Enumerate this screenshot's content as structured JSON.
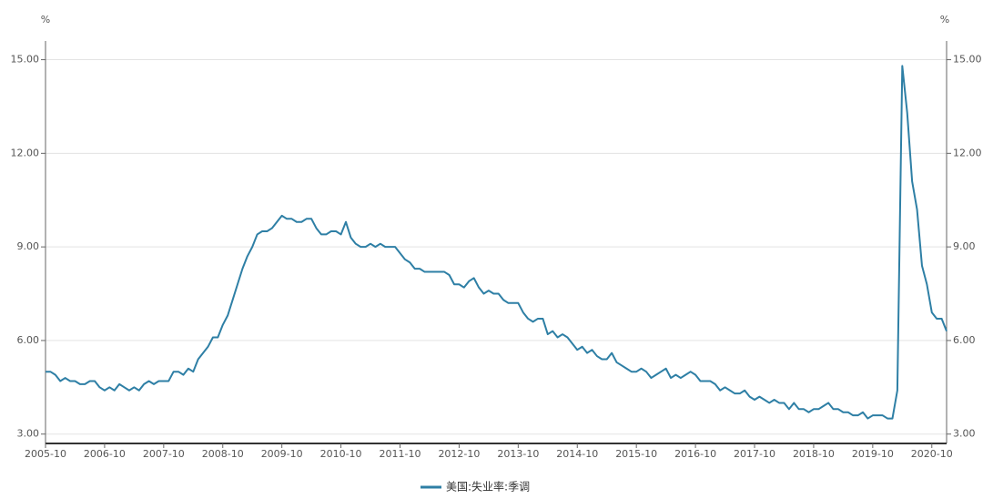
{
  "chart_data": {
    "type": "line",
    "y_label": "%",
    "y2_label": "%",
    "categories": [
      "2005-10",
      null,
      null,
      null,
      null,
      null,
      null,
      null,
      null,
      null,
      null,
      null,
      "2006-10",
      null,
      null,
      null,
      null,
      null,
      null,
      null,
      null,
      null,
      null,
      null,
      "2007-10",
      null,
      null,
      null,
      null,
      null,
      null,
      null,
      null,
      null,
      null,
      null,
      "2008-10",
      null,
      null,
      null,
      null,
      null,
      null,
      null,
      null,
      null,
      null,
      null,
      "2009-10",
      null,
      null,
      null,
      null,
      null,
      null,
      null,
      null,
      null,
      null,
      null,
      "2010-10",
      null,
      null,
      null,
      null,
      null,
      null,
      null,
      null,
      null,
      null,
      null,
      "2011-10",
      null,
      null,
      null,
      null,
      null,
      null,
      null,
      null,
      null,
      null,
      null,
      "2012-10",
      null,
      null,
      null,
      null,
      null,
      null,
      null,
      null,
      null,
      null,
      null,
      "2013-10",
      null,
      null,
      null,
      null,
      null,
      null,
      null,
      null,
      null,
      null,
      null,
      "2014-10",
      null,
      null,
      null,
      null,
      null,
      null,
      null,
      null,
      null,
      null,
      null,
      "2015-10",
      null,
      null,
      null,
      null,
      null,
      null,
      null,
      null,
      null,
      null,
      null,
      "2016-10",
      null,
      null,
      null,
      null,
      null,
      null,
      null,
      null,
      null,
      null,
      null,
      "2017-10",
      null,
      null,
      null,
      null,
      null,
      null,
      null,
      null,
      null,
      null,
      null,
      "2018-10",
      null,
      null,
      null,
      null,
      null,
      null,
      null,
      null,
      null,
      null,
      null,
      "2019-10",
      null,
      null,
      null,
      null,
      null,
      null,
      null,
      null,
      null,
      null,
      null,
      "2020-10",
      null,
      null,
      null
    ],
    "series": [
      {
        "name": "美国:失业率:季调",
        "color": "#2e7fa5",
        "values": [
          5.0,
          5.0,
          4.9,
          4.7,
          4.8,
          4.7,
          4.7,
          4.6,
          4.6,
          4.7,
          4.7,
          4.5,
          4.4,
          4.5,
          4.4,
          4.6,
          4.5,
          4.4,
          4.5,
          4.4,
          4.6,
          4.7,
          4.6,
          4.7,
          4.7,
          4.7,
          5.0,
          5.0,
          4.9,
          5.1,
          5.0,
          5.4,
          5.6,
          5.8,
          6.1,
          6.1,
          6.5,
          6.8,
          7.3,
          7.8,
          8.3,
          8.7,
          9.0,
          9.4,
          9.5,
          9.5,
          9.6,
          9.8,
          10.0,
          9.9,
          9.9,
          9.8,
          9.8,
          9.9,
          9.9,
          9.6,
          9.4,
          9.4,
          9.5,
          9.5,
          9.4,
          9.8,
          9.3,
          9.1,
          9.0,
          9.0,
          9.1,
          9.0,
          9.1,
          9.0,
          9.0,
          9.0,
          8.8,
          8.6,
          8.5,
          8.3,
          8.3,
          8.2,
          8.2,
          8.2,
          8.2,
          8.2,
          8.1,
          7.8,
          7.8,
          7.7,
          7.9,
          8.0,
          7.7,
          7.5,
          7.6,
          7.5,
          7.5,
          7.3,
          7.2,
          7.2,
          7.2,
          6.9,
          6.7,
          6.6,
          6.7,
          6.7,
          6.2,
          6.3,
          6.1,
          6.2,
          6.1,
          5.9,
          5.7,
          5.8,
          5.6,
          5.7,
          5.5,
          5.4,
          5.4,
          5.6,
          5.3,
          5.2,
          5.1,
          5.0,
          5.0,
          5.1,
          5.0,
          4.8,
          4.9,
          5.0,
          5.1,
          4.8,
          4.9,
          4.8,
          4.9,
          5.0,
          4.9,
          4.7,
          4.7,
          4.7,
          4.6,
          4.4,
          4.5,
          4.4,
          4.3,
          4.3,
          4.4,
          4.2,
          4.1,
          4.2,
          4.1,
          4.0,
          4.1,
          4.0,
          4.0,
          3.8,
          4.0,
          3.8,
          3.8,
          3.7,
          3.8,
          3.8,
          3.9,
          4.0,
          3.8,
          3.8,
          3.7,
          3.7,
          3.6,
          3.6,
          3.7,
          3.5,
          3.6,
          3.6,
          3.6,
          3.5,
          3.5,
          4.4,
          14.8,
          13.3,
          11.1,
          10.2,
          8.4,
          7.8,
          6.9,
          6.7,
          6.7,
          6.3
        ]
      }
    ],
    "ylim": [
      2.7,
      15.6
    ],
    "yticks": [
      {
        "value": 3,
        "label": "3.00"
      },
      {
        "value": 6,
        "label": "6.00"
      },
      {
        "value": 9,
        "label": "9.00"
      },
      {
        "value": 12,
        "label": "12.00"
      },
      {
        "value": 15,
        "label": "15.00"
      }
    ],
    "y2lim": [
      2.7,
      15.6
    ],
    "y2ticks": [
      {
        "value": 3,
        "label": "3.00"
      },
      {
        "value": 6,
        "label": "6.00"
      },
      {
        "value": 9,
        "label": "9.00"
      },
      {
        "value": 12,
        "label": "12.00"
      },
      {
        "value": 15,
        "label": "15.00"
      }
    ],
    "grid": true
  }
}
